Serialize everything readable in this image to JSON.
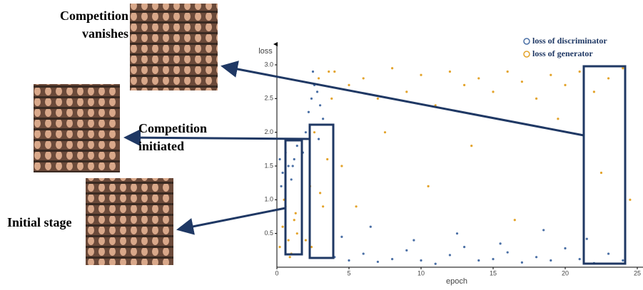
{
  "chart_data": {
    "type": "scatter",
    "x_label": "epoch",
    "y_label": "loss",
    "xlim": [
      0,
      25
    ],
    "ylim": [
      0,
      3
    ],
    "xticks": [
      0,
      5,
      10,
      15,
      20,
      25
    ],
    "yticks": [
      0.5,
      {
        "value": 1,
        "label": "1.0"
      },
      1.5,
      {
        "value": 2,
        "label": "2.0"
      },
      2.5,
      {
        "value": 3,
        "label": "3.0"
      }
    ],
    "series": [
      {
        "name": "loss of discriminator",
        "color": "#4a6fa5",
        "x": [
          0.2,
          0.4,
          0.6,
          0.8,
          1.0,
          1.2,
          1.4,
          0.3,
          0.7,
          1.1,
          1.8,
          2.0,
          2.2,
          2.4,
          2.6,
          2.8,
          3.0,
          3.2,
          2.5,
          2.9,
          4,
          5,
          6,
          7,
          8,
          9,
          10,
          11,
          12,
          13,
          14,
          15,
          16,
          17,
          18,
          19,
          20,
          21,
          22,
          23,
          24,
          4.5,
          6.5,
          9.5,
          12.5,
          15.5,
          18.5,
          21.5
        ],
        "values": [
          1.6,
          1.4,
          1.7,
          1.5,
          1.3,
          1.6,
          1.8,
          1.2,
          1.9,
          1.5,
          1.7,
          2.0,
          2.3,
          2.5,
          2.7,
          2.6,
          2.4,
          2.2,
          2.9,
          1.9,
          0.15,
          0.1,
          0.2,
          0.08,
          0.12,
          0.25,
          0.1,
          0.05,
          0.18,
          0.3,
          0.1,
          0.12,
          0.22,
          0.07,
          0.15,
          0.1,
          0.28,
          0.12,
          0.06,
          0.2,
          0.1,
          0.45,
          0.6,
          0.4,
          0.5,
          0.35,
          0.55,
          0.42
        ]
      },
      {
        "name": "loss of generator",
        "color": "#e3a32a",
        "x": [
          0.2,
          0.4,
          0.6,
          0.8,
          1.0,
          1.2,
          1.4,
          0.5,
          0.9,
          1.3,
          2.0,
          2.3,
          2.6,
          2.9,
          3.2,
          3.5,
          3.8,
          2.4,
          3.0,
          3.6,
          4,
          5,
          6,
          7,
          8,
          9,
          10,
          11,
          12,
          13,
          14,
          15,
          16,
          17,
          18,
          19,
          20,
          21,
          22,
          23,
          24,
          4.5,
          5.5,
          7.5,
          10.5,
          13.5,
          16.5,
          19.5,
          22.5,
          24.5
        ],
        "values": [
          0.3,
          0.6,
          0.9,
          0.4,
          0.2,
          0.7,
          0.5,
          1.0,
          0.15,
          0.8,
          0.4,
          1.2,
          2.0,
          2.8,
          0.9,
          1.6,
          2.5,
          0.3,
          1.1,
          2.9,
          2.9,
          2.7,
          2.8,
          2.5,
          2.95,
          2.6,
          2.85,
          2.4,
          2.9,
          2.7,
          2.8,
          2.6,
          2.9,
          2.75,
          2.5,
          2.85,
          2.7,
          2.9,
          2.6,
          2.8,
          2.95,
          1.5,
          0.9,
          2.0,
          1.2,
          1.8,
          0.7,
          2.2,
          1.4,
          1.0
        ]
      }
    ],
    "annotations": [
      "Competition vanishes",
      "Competition initiated",
      "Initial stage"
    ]
  }
}
